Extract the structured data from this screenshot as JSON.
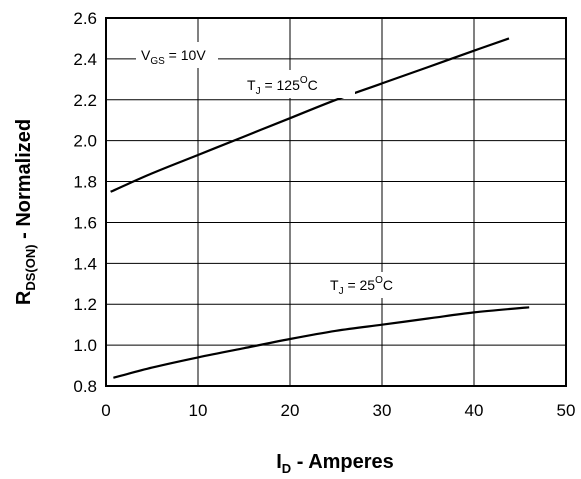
{
  "chart_data": {
    "type": "line",
    "xlabel": {
      "main": "I",
      "sub": "D",
      "rest": " - Amperes"
    },
    "ylabel": {
      "main": "R",
      "sub": "DS(ON)",
      "rest": " - Normalized"
    },
    "xlim": [
      0,
      50
    ],
    "ylim": [
      0.8,
      2.6
    ],
    "xticks": [
      0,
      10,
      20,
      30,
      40,
      50
    ],
    "xtick_labels": [
      "0",
      "10",
      "20",
      "30",
      "40",
      "50"
    ],
    "yticks": [
      0.8,
      1.0,
      1.2,
      1.4,
      1.6,
      1.8,
      2.0,
      2.2,
      2.4,
      2.6
    ],
    "ytick_labels": [
      "0.8",
      "1.0",
      "1.2",
      "1.4",
      "1.6",
      "1.8",
      "2.0",
      "2.2",
      "2.4",
      "2.6"
    ],
    "grid": true,
    "series": [
      {
        "name": "TJ = 125°C",
        "x": [
          0.5,
          5,
          10,
          15,
          20,
          25,
          30,
          35,
          40,
          43.8
        ],
        "y": [
          1.75,
          1.84,
          1.93,
          2.02,
          2.11,
          2.2,
          2.28,
          2.36,
          2.44,
          2.5
        ]
      },
      {
        "name": "TJ = 25°C",
        "x": [
          0.8,
          5,
          10,
          15,
          20,
          25,
          30,
          35,
          40,
          46
        ],
        "y": [
          0.84,
          0.89,
          0.94,
          0.985,
          1.03,
          1.07,
          1.1,
          1.13,
          1.16,
          1.185
        ]
      }
    ],
    "annotations": [
      {
        "main": "V",
        "sub": "GS",
        "rest": " = 10V"
      },
      {
        "main": "T",
        "sub": "J",
        "rest": " = 125",
        "sup": "O",
        "tail": "C"
      },
      {
        "main": "T",
        "sub": "J",
        "rest": " = 25",
        "sup": "O",
        "tail": "C"
      }
    ]
  }
}
